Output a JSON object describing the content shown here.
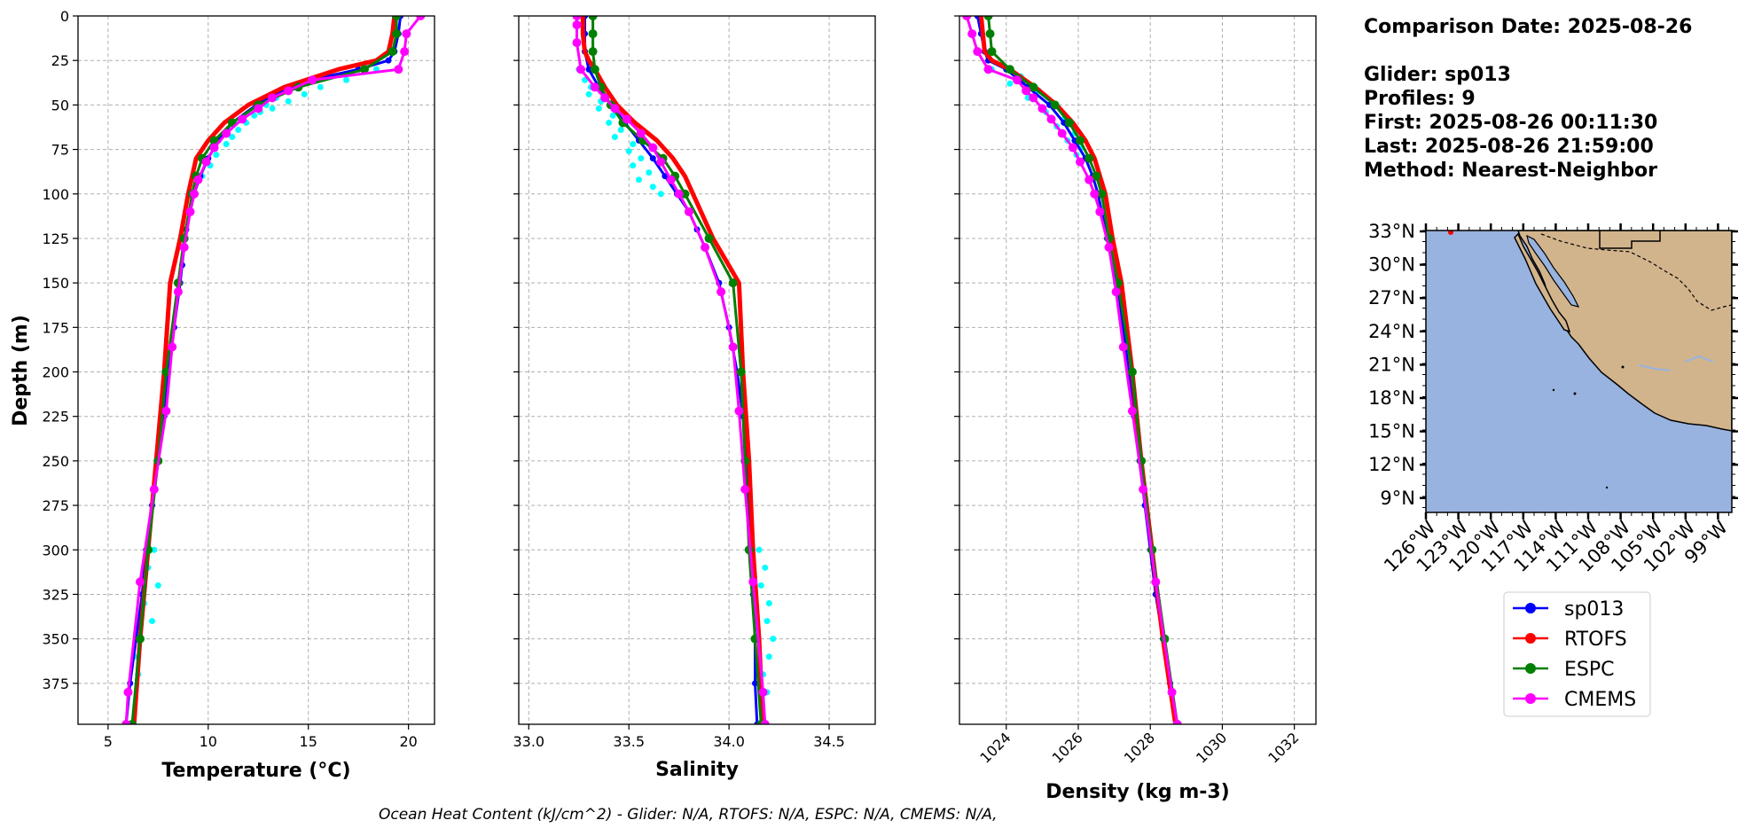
{
  "colors": {
    "glider": "#0000ff",
    "glider_profiles": "#00ffff",
    "rtofs": "#ff0000",
    "espc": "#008000",
    "cmems": "#ff00ff",
    "ocean": "#99b3e0",
    "land": "#d2b48c"
  },
  "info": {
    "comparison_date": "Comparison Date: 2025-08-26",
    "glider": "Glider: sp013",
    "profiles": "Profiles: 9",
    "first": "First: 2025-08-26 00:11:30",
    "last": "Last: 2025-08-26 21:59:00",
    "method": "Method: Nearest-Neighbor"
  },
  "footer": "Ocean Heat Content (kJ/cm^2) - Glider: N/A,  RTOFS: N/A,  ESPC: N/A,  CMEMS: N/A,",
  "legend": [
    {
      "label": "sp013",
      "color": "#0000ff"
    },
    {
      "label": "RTOFS",
      "color": "#ff0000"
    },
    {
      "label": "ESPC",
      "color": "#008000"
    },
    {
      "label": "CMEMS",
      "color": "#ff00ff"
    }
  ],
  "chart_data": [
    {
      "type": "line",
      "id": "temperature",
      "title": "",
      "xlabel": "Temperature (°C)",
      "ylabel": "Depth (m)",
      "xlim": [
        3.5,
        21.3
      ],
      "ylim": [
        0,
        398
      ],
      "y_inverted": true,
      "xticks": [
        5,
        10,
        15,
        20
      ],
      "yticks": [
        0,
        25,
        50,
        75,
        100,
        125,
        150,
        175,
        200,
        225,
        250,
        275,
        300,
        325,
        350,
        375
      ],
      "grid": true,
      "series": [
        {
          "name": "sp013",
          "color": "#0000ff",
          "width": 3,
          "marker": 3.5,
          "depth": [
            0,
            10,
            20,
            25,
            30,
            35,
            40,
            45,
            50,
            60,
            70,
            80,
            90,
            100,
            110,
            120,
            130,
            140,
            150,
            175,
            200,
            225,
            250,
            275,
            300,
            325,
            350,
            375,
            398
          ],
          "values": [
            19.6,
            19.5,
            19.3,
            19.0,
            17.5,
            15.5,
            14.3,
            13.2,
            12.4,
            11.2,
            10.5,
            10.0,
            9.6,
            9.3,
            9.1,
            8.9,
            8.8,
            8.7,
            8.6,
            8.3,
            8.0,
            7.8,
            7.5,
            7.2,
            6.9,
            6.7,
            6.4,
            6.1,
            5.9
          ]
        },
        {
          "name": "RTOFS",
          "color": "#ff0000",
          "width": 5,
          "marker": 0,
          "depth": [
            0,
            10,
            20,
            25,
            30,
            40,
            50,
            60,
            70,
            80,
            90,
            100,
            125,
            150,
            200,
            250,
            300,
            350,
            398
          ],
          "values": [
            19.3,
            19.2,
            19.0,
            18.4,
            16.5,
            13.8,
            12.0,
            10.8,
            10.0,
            9.4,
            9.2,
            9.0,
            8.6,
            8.1,
            7.8,
            7.4,
            7.0,
            6.6,
            6.3
          ]
        },
        {
          "name": "ESPC",
          "color": "#008000",
          "width": 3,
          "marker": 5,
          "depth": [
            0,
            10,
            20,
            30,
            40,
            50,
            60,
            70,
            80,
            90,
            100,
            125,
            150,
            200,
            250,
            300,
            350,
            398
          ],
          "values": [
            19.4,
            19.4,
            19.2,
            17.8,
            14.5,
            12.5,
            11.2,
            10.3,
            9.7,
            9.4,
            9.2,
            8.8,
            8.5,
            7.9,
            7.5,
            7.0,
            6.6,
            6.2
          ]
        },
        {
          "name": "CMEMS",
          "color": "#ff00ff",
          "width": 3,
          "marker": 5,
          "depth": [
            0,
            10,
            20,
            30,
            36,
            42,
            46,
            52,
            58,
            66,
            74,
            82,
            92,
            100,
            110,
            130,
            155,
            186,
            222,
            266,
            318,
            380,
            398
          ],
          "values": [
            20.6,
            19.9,
            19.8,
            19.5,
            15.2,
            14.0,
            13.2,
            12.5,
            11.7,
            10.9,
            10.3,
            9.9,
            9.5,
            9.3,
            9.1,
            8.8,
            8.5,
            8.2,
            7.9,
            7.3,
            6.6,
            6.0,
            5.9
          ]
        }
      ],
      "glider_profile_points": {
        "depth": [
          30,
          34,
          36,
          38,
          40,
          42,
          44,
          46,
          48,
          50,
          52,
          54,
          56,
          60,
          64,
          68,
          72,
          78,
          84,
          90,
          300,
          310,
          320,
          330,
          340,
          350,
          360,
          370
        ],
        "values": [
          18.4,
          15.8,
          16.9,
          14.6,
          15.6,
          13.9,
          14.8,
          13.4,
          14.0,
          12.9,
          13.2,
          12.6,
          12.3,
          11.9,
          11.5,
          11.2,
          10.9,
          10.4,
          10.1,
          9.7,
          7.3,
          7.0,
          7.5,
          6.8,
          7.2,
          6.6,
          6.3,
          6.5
        ]
      }
    },
    {
      "type": "line",
      "id": "salinity",
      "title": "",
      "xlabel": "Salinity",
      "ylabel": "",
      "xlim": [
        32.95,
        34.73
      ],
      "ylim": [
        0,
        398
      ],
      "y_inverted": true,
      "xticks": [
        33.0,
        33.5,
        34.0,
        34.5
      ],
      "xtick_labels": [
        "33.0",
        "33.5",
        "34.0",
        "34.5"
      ],
      "yticks": [
        0,
        25,
        50,
        75,
        100,
        125,
        150,
        175,
        200,
        225,
        250,
        275,
        300,
        325,
        350,
        375
      ],
      "grid": true,
      "series": [
        {
          "name": "sp013",
          "color": "#0000ff",
          "width": 3,
          "marker": 3.5,
          "depth": [
            0,
            10,
            20,
            30,
            40,
            50,
            60,
            70,
            80,
            90,
            100,
            110,
            120,
            130,
            150,
            175,
            200,
            225,
            250,
            275,
            300,
            325,
            350,
            375,
            398
          ],
          "values": [
            33.28,
            33.28,
            33.28,
            33.3,
            33.35,
            33.41,
            33.48,
            33.55,
            33.62,
            33.68,
            33.74,
            33.8,
            33.84,
            33.88,
            33.95,
            34.0,
            34.04,
            34.07,
            34.09,
            34.1,
            34.11,
            34.12,
            34.13,
            34.13,
            34.14
          ]
        },
        {
          "name": "RTOFS",
          "color": "#ff0000",
          "width": 5,
          "marker": 0,
          "depth": [
            0,
            10,
            20,
            25,
            30,
            40,
            50,
            60,
            70,
            80,
            90,
            100,
            125,
            150,
            200,
            250,
            300,
            350,
            398
          ],
          "values": [
            33.27,
            33.27,
            33.28,
            33.3,
            33.33,
            33.38,
            33.44,
            33.53,
            33.64,
            33.72,
            33.78,
            33.82,
            33.92,
            34.05,
            34.07,
            34.1,
            34.12,
            34.15,
            34.17
          ]
        },
        {
          "name": "ESPC",
          "color": "#008000",
          "width": 3,
          "marker": 5,
          "depth": [
            0,
            10,
            20,
            30,
            40,
            50,
            60,
            70,
            80,
            90,
            100,
            125,
            150,
            200,
            250,
            300,
            350,
            398
          ],
          "values": [
            33.32,
            33.32,
            33.32,
            33.33,
            33.36,
            33.41,
            33.47,
            33.57,
            33.67,
            33.73,
            33.78,
            33.9,
            34.02,
            34.06,
            34.08,
            34.1,
            34.13,
            34.16
          ]
        },
        {
          "name": "CMEMS",
          "color": "#ff00ff",
          "width": 3,
          "marker": 5,
          "depth": [
            0,
            5,
            15,
            30,
            40,
            46,
            52,
            58,
            66,
            74,
            82,
            92,
            100,
            110,
            130,
            155,
            186,
            222,
            266,
            318,
            380,
            398
          ],
          "values": [
            33.24,
            33.24,
            33.24,
            33.26,
            33.33,
            33.38,
            33.43,
            33.49,
            33.56,
            33.62,
            33.66,
            33.71,
            33.75,
            33.8,
            33.88,
            33.96,
            34.02,
            34.05,
            34.08,
            34.12,
            34.17,
            34.18
          ]
        }
      ],
      "glider_profile_points": {
        "depth": [
          30,
          36,
          40,
          44,
          48,
          52,
          56,
          60,
          64,
          68,
          72,
          76,
          80,
          84,
          88,
          92,
          96,
          100,
          300,
          310,
          320,
          330,
          340,
          350,
          360,
          370,
          380
        ],
        "values": [
          33.25,
          33.28,
          33.31,
          33.3,
          33.36,
          33.35,
          33.42,
          33.4,
          33.46,
          33.43,
          33.52,
          33.5,
          33.56,
          33.52,
          33.6,
          33.55,
          33.62,
          33.66,
          34.15,
          34.18,
          34.16,
          34.2,
          34.19,
          34.22,
          34.2,
          34.17,
          34.19
        ]
      }
    },
    {
      "type": "line",
      "id": "density",
      "title": "",
      "xlabel": "Density (kg m-3)",
      "ylabel": "",
      "xlim": [
        1022.7,
        1032.6
      ],
      "ylim": [
        0,
        398
      ],
      "y_inverted": true,
      "xticks": [
        1024,
        1026,
        1028,
        1030,
        1032
      ],
      "yticks": [
        0,
        25,
        50,
        75,
        100,
        125,
        150,
        175,
        200,
        225,
        250,
        275,
        300,
        325,
        350,
        375
      ],
      "grid": true,
      "series": [
        {
          "name": "sp013",
          "color": "#0000ff",
          "width": 3,
          "marker": 3.5,
          "depth": [
            0,
            10,
            20,
            25,
            30,
            40,
            50,
            60,
            70,
            80,
            90,
            100,
            125,
            150,
            175,
            200,
            225,
            250,
            275,
            300,
            325,
            350,
            375,
            398
          ],
          "values": [
            1023.2,
            1023.3,
            1023.4,
            1023.5,
            1024.0,
            1024.6,
            1025.2,
            1025.6,
            1025.9,
            1026.2,
            1026.4,
            1026.55,
            1026.8,
            1027.05,
            1027.25,
            1027.4,
            1027.55,
            1027.7,
            1027.85,
            1028.0,
            1028.15,
            1028.35,
            1028.55,
            1028.75
          ]
        },
        {
          "name": "RTOFS",
          "color": "#ff0000",
          "width": 5,
          "marker": 0,
          "depth": [
            0,
            10,
            20,
            25,
            30,
            40,
            50,
            60,
            70,
            80,
            90,
            100,
            125,
            150,
            200,
            250,
            300,
            350,
            398
          ],
          "values": [
            1023.3,
            1023.35,
            1023.4,
            1023.6,
            1024.1,
            1024.8,
            1025.4,
            1025.85,
            1026.2,
            1026.45,
            1026.6,
            1026.75,
            1026.95,
            1027.2,
            1027.5,
            1027.75,
            1028.05,
            1028.35,
            1028.7
          ]
        },
        {
          "name": "ESPC",
          "color": "#008000",
          "width": 3,
          "marker": 5,
          "depth": [
            0,
            10,
            20,
            30,
            40,
            50,
            60,
            70,
            80,
            90,
            100,
            125,
            150,
            200,
            250,
            300,
            350,
            398
          ],
          "values": [
            1023.5,
            1023.55,
            1023.6,
            1024.1,
            1024.75,
            1025.35,
            1025.75,
            1026.05,
            1026.3,
            1026.5,
            1026.65,
            1026.85,
            1027.1,
            1027.5,
            1027.75,
            1028.05,
            1028.4,
            1028.75
          ]
        },
        {
          "name": "CMEMS",
          "color": "#ff00ff",
          "width": 3,
          "marker": 5,
          "depth": [
            0,
            10,
            20,
            30,
            36,
            42,
            46,
            52,
            58,
            66,
            74,
            82,
            92,
            100,
            110,
            130,
            155,
            186,
            222,
            266,
            318,
            380,
            398
          ],
          "values": [
            1022.9,
            1023.05,
            1023.2,
            1023.5,
            1024.3,
            1024.55,
            1024.75,
            1025.0,
            1025.25,
            1025.55,
            1025.85,
            1026.05,
            1026.3,
            1026.45,
            1026.6,
            1026.85,
            1027.05,
            1027.25,
            1027.5,
            1027.8,
            1028.15,
            1028.6,
            1028.75
          ]
        }
      ],
      "glider_profile_points": {
        "depth": [
          30,
          34,
          38,
          42,
          46,
          50,
          54,
          58,
          62,
          66,
          70,
          74,
          78
        ],
        "values": [
          1023.6,
          1024.4,
          1024.1,
          1024.9,
          1024.6,
          1025.3,
          1025.1,
          1025.6,
          1025.4,
          1025.9,
          1025.7,
          1026.1,
          1025.95
        ]
      }
    },
    {
      "type": "map",
      "id": "track-map",
      "lat_labels": [
        "33°N",
        "30°N",
        "27°N",
        "24°N",
        "21°N",
        "18°N",
        "15°N",
        "12°N",
        "9°N"
      ],
      "lon_labels": [
        "126°W",
        "123°W",
        "120°W",
        "117°W",
        "114°W",
        "111°W",
        "108°W",
        "105°W",
        "102°W",
        "99°W"
      ]
    }
  ]
}
